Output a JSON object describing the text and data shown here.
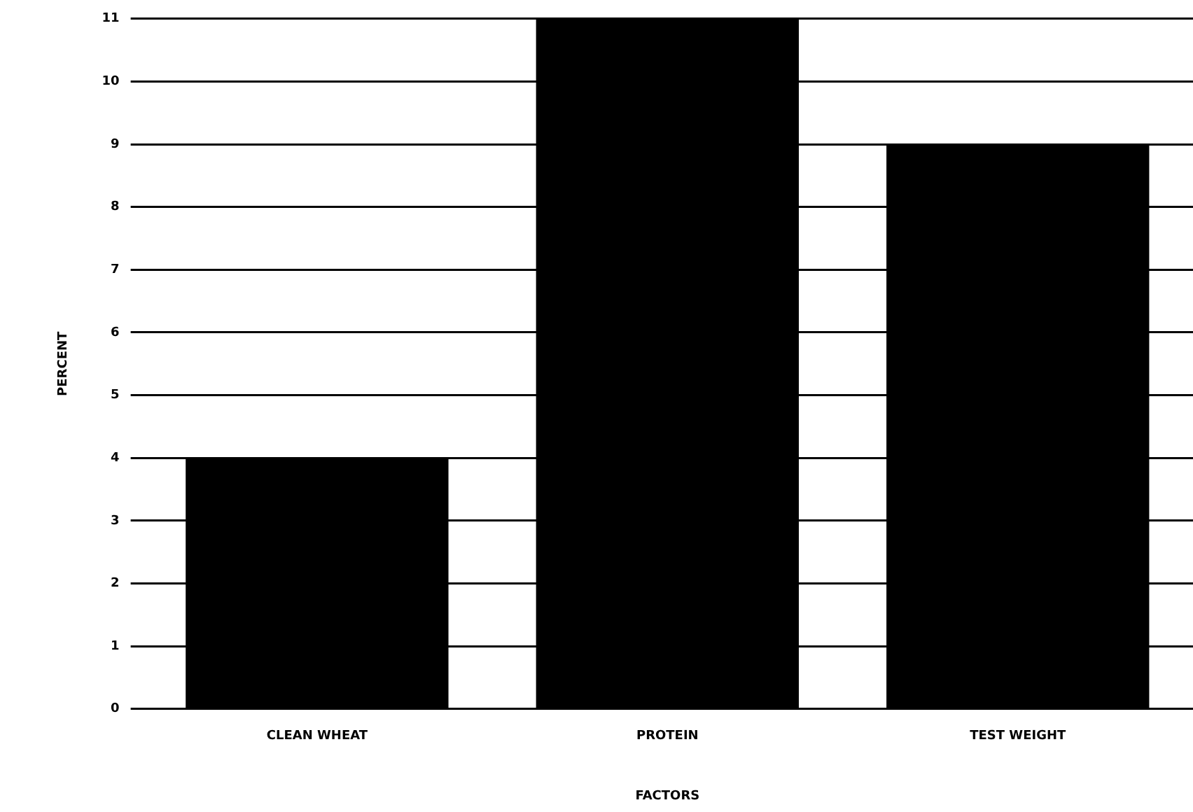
{
  "chart_data": {
    "type": "bar",
    "xlabel": "FACTORS",
    "ylabel": "PERCENT",
    "categories": [
      "CLEAN WHEAT",
      "PROTEIN",
      "TEST WEIGHT"
    ],
    "values": [
      4,
      11,
      9
    ],
    "color": "#000000",
    "ylim": [
      0,
      11
    ],
    "yticks": [
      0,
      1,
      2,
      3,
      4,
      5,
      6,
      7,
      8,
      9,
      10,
      11
    ],
    "grid": "y"
  }
}
